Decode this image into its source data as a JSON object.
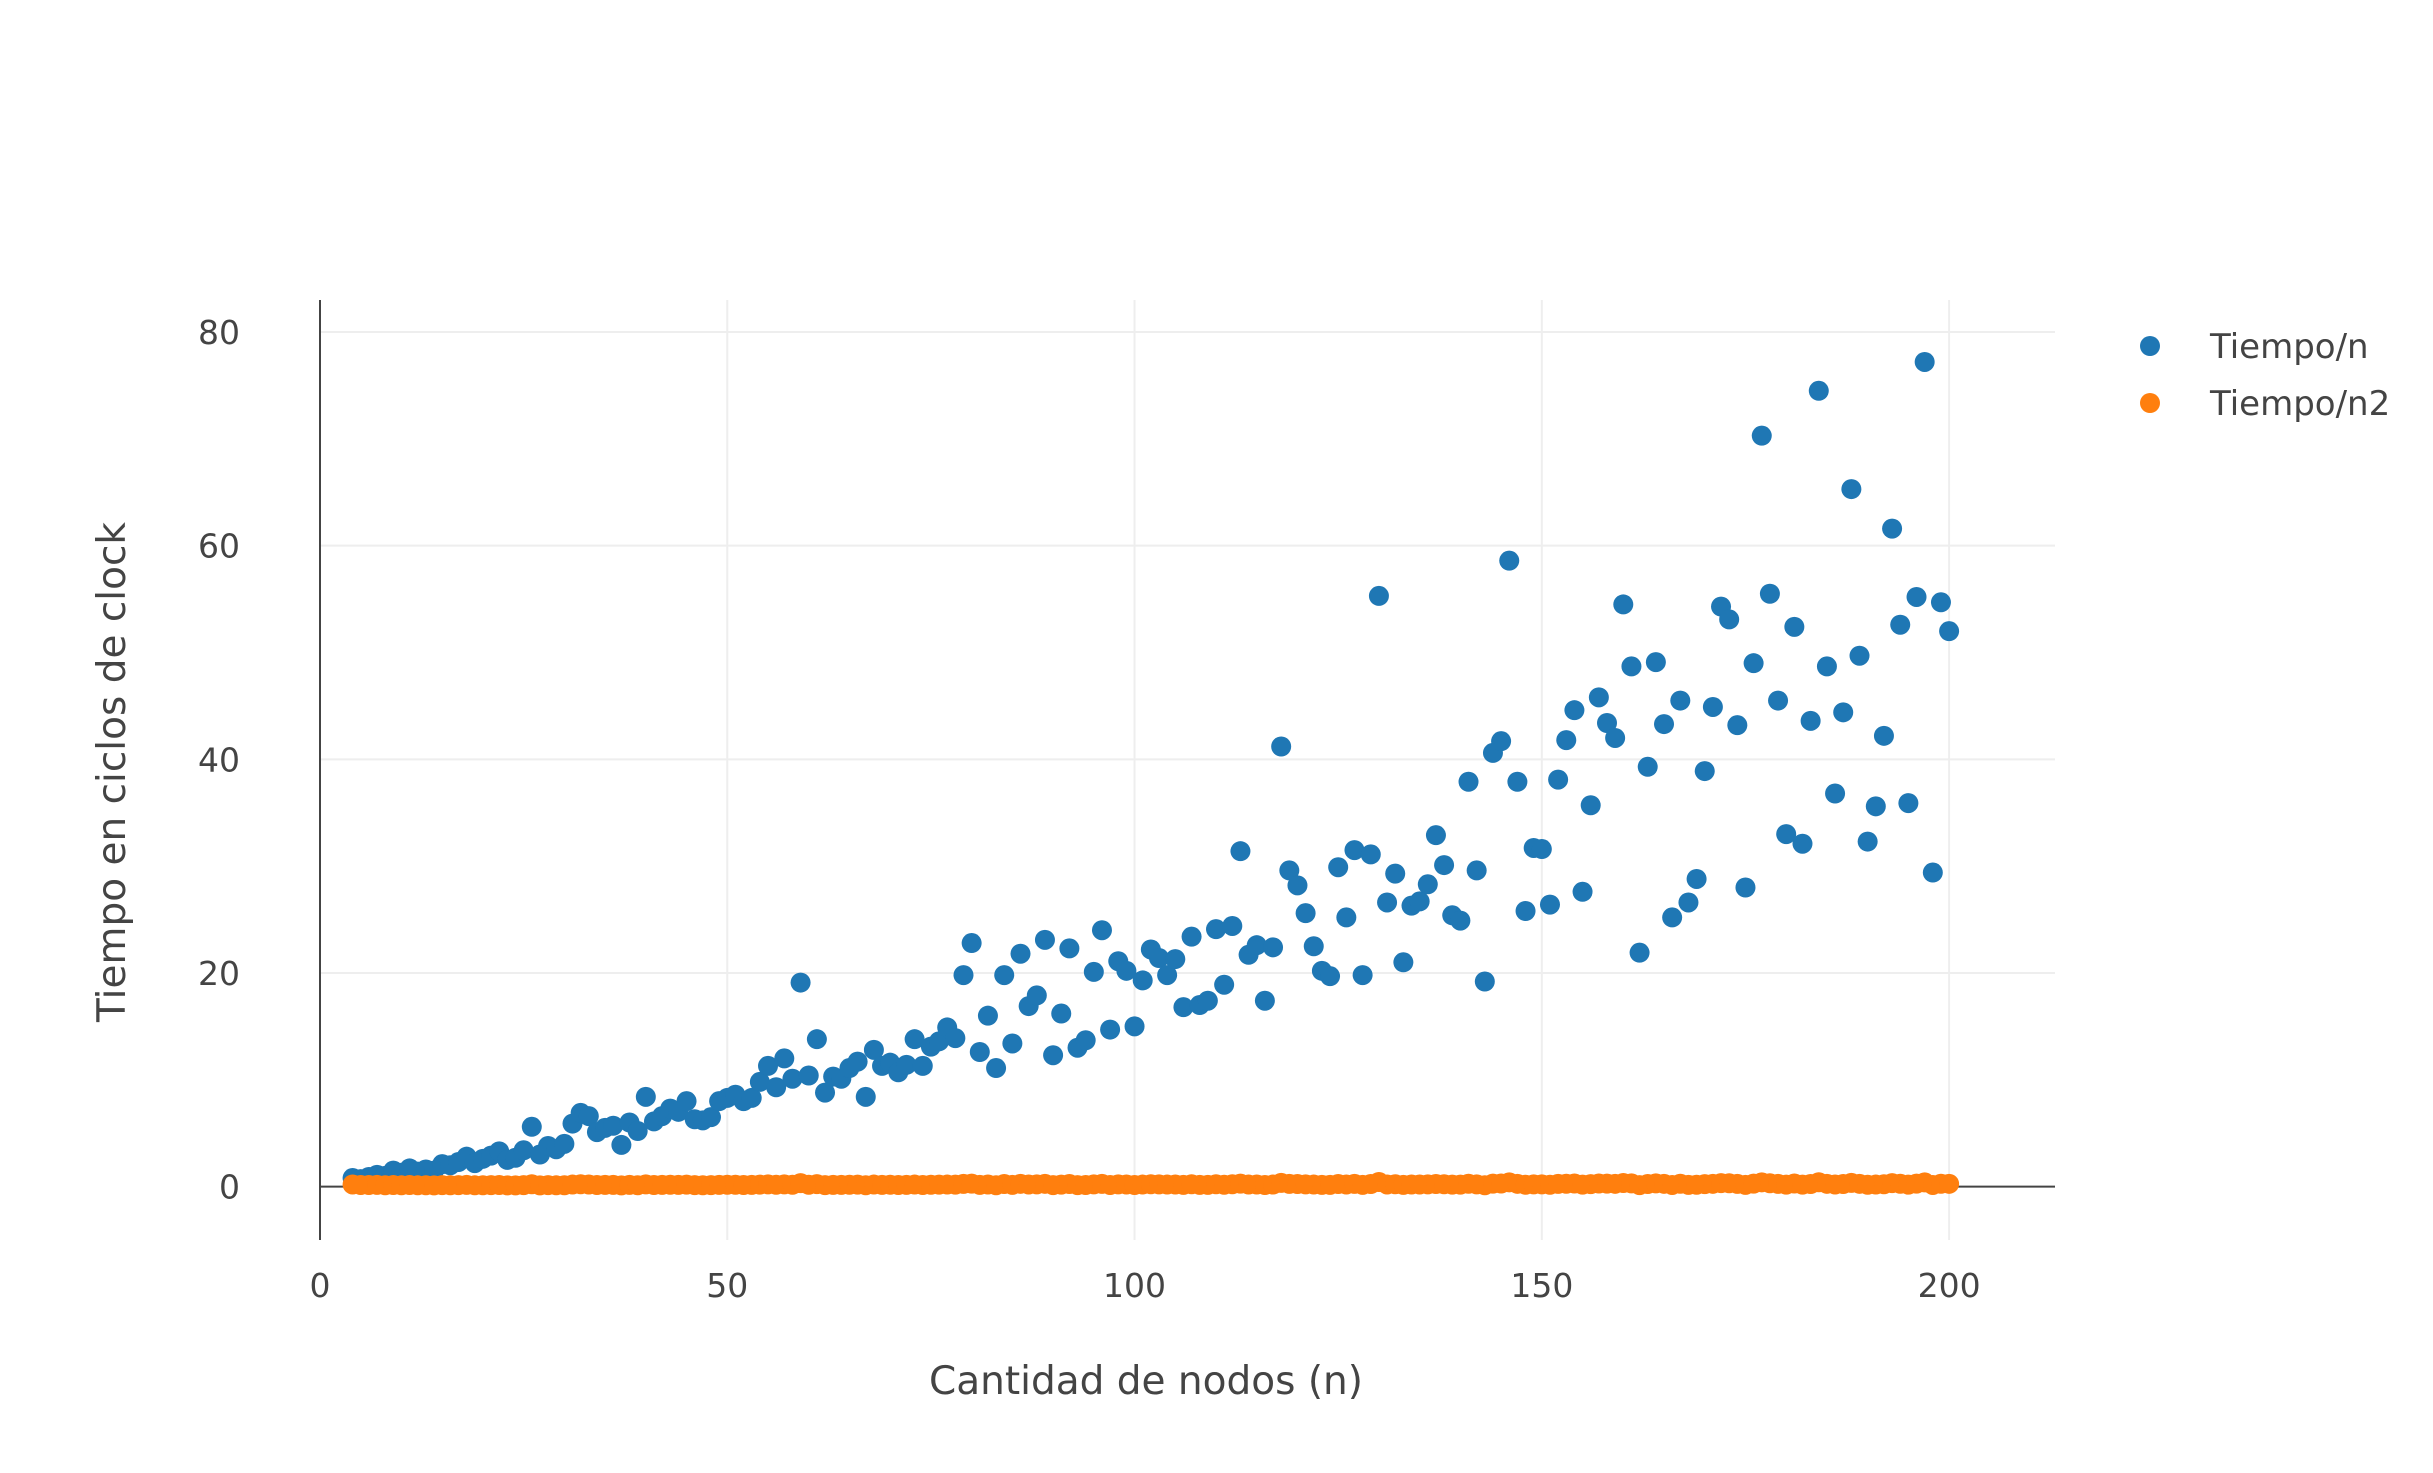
{
  "chart_data": {
    "type": "scatter",
    "title": "",
    "xlabel": "Cantidad de nodos (n)",
    "ylabel": "Tiempo en ciclos de clock",
    "xlim": [
      0,
      213
    ],
    "ylim": [
      -5,
      83
    ],
    "xticks": [
      0,
      50,
      100,
      150,
      200
    ],
    "yticks": [
      0,
      20,
      40,
      60,
      80
    ],
    "grid": true,
    "legend_position": "top-right",
    "series": [
      {
        "name": "Tiempo/n",
        "color": "#1f77b4",
        "points": [
          [
            4,
            0.8
          ],
          [
            5,
            0.7
          ],
          [
            6,
            0.9
          ],
          [
            7,
            1.1
          ],
          [
            8,
            1.0
          ],
          [
            9,
            1.5
          ],
          [
            10,
            1.3
          ],
          [
            11,
            1.7
          ],
          [
            12,
            1.4
          ],
          [
            13,
            1.6
          ],
          [
            14,
            1.5
          ],
          [
            15,
            2.1
          ],
          [
            16,
            2.0
          ],
          [
            17,
            2.3
          ],
          [
            18,
            2.8
          ],
          [
            19,
            2.2
          ],
          [
            20,
            2.6
          ],
          [
            21,
            2.9
          ],
          [
            22,
            3.3
          ],
          [
            23,
            2.5
          ],
          [
            24,
            2.7
          ],
          [
            25,
            3.4
          ],
          [
            26,
            5.6
          ],
          [
            27,
            3.0
          ],
          [
            28,
            3.8
          ],
          [
            29,
            3.5
          ],
          [
            30,
            4.0
          ],
          [
            31,
            5.9
          ],
          [
            32,
            6.9
          ],
          [
            33,
            6.6
          ],
          [
            34,
            5.1
          ],
          [
            35,
            5.5
          ],
          [
            36,
            5.7
          ],
          [
            37,
            3.9
          ],
          [
            38,
            6.0
          ],
          [
            39,
            5.2
          ],
          [
            40,
            8.4
          ],
          [
            41,
            6.1
          ],
          [
            42,
            6.6
          ],
          [
            43,
            7.3
          ],
          [
            44,
            7.0
          ],
          [
            45,
            8.0
          ],
          [
            46,
            6.3
          ],
          [
            47,
            6.2
          ],
          [
            48,
            6.5
          ],
          [
            49,
            8.0
          ],
          [
            50,
            8.3
          ],
          [
            51,
            8.6
          ],
          [
            52,
            8.0
          ],
          [
            53,
            8.3
          ],
          [
            54,
            9.8
          ],
          [
            55,
            11.3
          ],
          [
            56,
            9.3
          ],
          [
            57,
            12.0
          ],
          [
            58,
            10.1
          ],
          [
            59,
            19.1
          ],
          [
            60,
            10.4
          ],
          [
            61,
            13.8
          ],
          [
            62,
            8.8
          ],
          [
            63,
            10.3
          ],
          [
            64,
            10.1
          ],
          [
            65,
            11.1
          ],
          [
            66,
            11.7
          ],
          [
            67,
            8.4
          ],
          [
            68,
            12.8
          ],
          [
            69,
            11.3
          ],
          [
            70,
            11.6
          ],
          [
            71,
            10.7
          ],
          [
            72,
            11.4
          ],
          [
            73,
            13.8
          ],
          [
            74,
            11.3
          ],
          [
            75,
            13.1
          ],
          [
            76,
            13.6
          ],
          [
            77,
            14.9
          ],
          [
            78,
            13.9
          ],
          [
            79,
            19.8
          ],
          [
            80,
            22.8
          ],
          [
            81,
            12.6
          ],
          [
            82,
            16.0
          ],
          [
            83,
            11.1
          ],
          [
            84,
            19.8
          ],
          [
            85,
            13.4
          ],
          [
            86,
            21.8
          ],
          [
            87,
            16.9
          ],
          [
            88,
            17.9
          ],
          [
            89,
            23.1
          ],
          [
            90,
            12.3
          ],
          [
            91,
            16.2
          ],
          [
            92,
            22.3
          ],
          [
            93,
            13.0
          ],
          [
            94,
            13.7
          ],
          [
            95,
            20.1
          ],
          [
            96,
            24.0
          ],
          [
            97,
            14.7
          ],
          [
            98,
            21.1
          ],
          [
            99,
            20.2
          ],
          [
            100,
            15.0
          ],
          [
            101,
            19.3
          ],
          [
            102,
            22.2
          ],
          [
            103,
            21.4
          ],
          [
            104,
            19.8
          ],
          [
            105,
            21.3
          ],
          [
            106,
            16.8
          ],
          [
            107,
            23.4
          ],
          [
            108,
            17.0
          ],
          [
            109,
            17.4
          ],
          [
            110,
            24.1
          ],
          [
            111,
            18.9
          ],
          [
            112,
            24.4
          ],
          [
            113,
            31.4
          ],
          [
            114,
            21.7
          ],
          [
            115,
            22.6
          ],
          [
            116,
            17.4
          ],
          [
            117,
            22.4
          ],
          [
            118,
            41.2
          ],
          [
            119,
            29.6
          ],
          [
            120,
            28.2
          ],
          [
            121,
            25.6
          ],
          [
            122,
            22.5
          ],
          [
            123,
            20.2
          ],
          [
            124,
            19.7
          ],
          [
            125,
            29.9
          ],
          [
            126,
            25.2
          ],
          [
            127,
            31.5
          ],
          [
            128,
            19.8
          ],
          [
            129,
            31.1
          ],
          [
            130,
            55.3
          ],
          [
            131,
            26.6
          ],
          [
            132,
            29.3
          ],
          [
            133,
            21.0
          ],
          [
            134,
            26.3
          ],
          [
            135,
            26.7
          ],
          [
            136,
            28.3
          ],
          [
            137,
            32.9
          ],
          [
            138,
            30.1
          ],
          [
            139,
            25.4
          ],
          [
            140,
            24.9
          ],
          [
            141,
            37.9
          ],
          [
            142,
            29.6
          ],
          [
            143,
            19.2
          ],
          [
            144,
            40.6
          ],
          [
            145,
            41.7
          ],
          [
            146,
            58.6
          ],
          [
            147,
            37.9
          ],
          [
            148,
            25.8
          ],
          [
            149,
            31.7
          ],
          [
            150,
            31.6
          ],
          [
            151,
            26.4
          ],
          [
            152,
            38.1
          ],
          [
            153,
            41.8
          ],
          [
            154,
            44.6
          ],
          [
            155,
            27.6
          ],
          [
            156,
            35.7
          ],
          [
            157,
            45.8
          ],
          [
            158,
            43.4
          ],
          [
            159,
            42.0
          ],
          [
            160,
            54.5
          ],
          [
            161,
            48.7
          ],
          [
            162,
            21.9
          ],
          [
            163,
            39.3
          ],
          [
            164,
            49.1
          ],
          [
            165,
            43.3
          ],
          [
            166,
            25.2
          ],
          [
            167,
            45.5
          ],
          [
            168,
            26.6
          ],
          [
            169,
            28.8
          ],
          [
            170,
            38.9
          ],
          [
            171,
            44.9
          ],
          [
            172,
            54.3
          ],
          [
            173,
            53.1
          ],
          [
            174,
            43.2
          ],
          [
            175,
            28.0
          ],
          [
            176,
            49.0
          ],
          [
            177,
            70.3
          ],
          [
            178,
            55.5
          ],
          [
            179,
            45.5
          ],
          [
            180,
            33.0
          ],
          [
            181,
            52.4
          ],
          [
            182,
            32.1
          ],
          [
            183,
            43.6
          ],
          [
            184,
            74.5
          ],
          [
            185,
            48.7
          ],
          [
            186,
            36.8
          ],
          [
            187,
            44.4
          ],
          [
            188,
            65.3
          ],
          [
            189,
            49.7
          ],
          [
            190,
            32.3
          ],
          [
            191,
            35.6
          ],
          [
            192,
            42.2
          ],
          [
            193,
            61.6
          ],
          [
            194,
            52.6
          ],
          [
            195,
            35.9
          ],
          [
            196,
            55.2
          ],
          [
            197,
            77.2
          ],
          [
            198,
            29.4
          ],
          [
            199,
            54.7
          ],
          [
            200,
            52.0
          ]
        ]
      },
      {
        "name": "Tiempo/n2",
        "color": "#ff7f0e",
        "x_start": 4,
        "x_end": 200,
        "y_values": [
          0.2,
          0.15,
          0.15,
          0.16,
          0.13,
          0.15,
          0.12,
          0.15,
          0.12,
          0.13,
          0.11,
          0.14,
          0.13,
          0.14,
          0.16,
          0.12,
          0.13,
          0.14,
          0.15,
          0.11,
          0.11,
          0.14,
          0.22,
          0.11,
          0.14,
          0.12,
          0.13,
          0.19,
          0.22,
          0.2,
          0.15,
          0.16,
          0.16,
          0.11,
          0.16,
          0.13,
          0.21,
          0.15,
          0.16,
          0.17,
          0.16,
          0.18,
          0.14,
          0.13,
          0.14,
          0.16,
          0.17,
          0.17,
          0.15,
          0.16,
          0.18,
          0.21,
          0.17,
          0.21,
          0.17,
          0.32,
          0.17,
          0.23,
          0.14,
          0.16,
          0.16,
          0.17,
          0.18,
          0.13,
          0.19,
          0.16,
          0.17,
          0.15,
          0.16,
          0.19,
          0.15,
          0.17,
          0.18,
          0.19,
          0.18,
          0.25,
          0.28,
          0.16,
          0.2,
          0.13,
          0.24,
          0.16,
          0.26,
          0.2,
          0.21,
          0.26,
          0.14,
          0.18,
          0.24,
          0.14,
          0.15,
          0.21,
          0.25,
          0.15,
          0.21,
          0.2,
          0.15,
          0.19,
          0.22,
          0.21,
          0.19,
          0.2,
          0.16,
          0.22,
          0.16,
          0.16,
          0.22,
          0.17,
          0.22,
          0.28,
          0.19,
          0.2,
          0.15,
          0.19,
          0.35,
          0.25,
          0.24,
          0.21,
          0.19,
          0.16,
          0.16,
          0.24,
          0.2,
          0.25,
          0.16,
          0.24,
          0.43,
          0.2,
          0.22,
          0.16,
          0.2,
          0.2,
          0.21,
          0.24,
          0.22,
          0.18,
          0.18,
          0.27,
          0.21,
          0.13,
          0.28,
          0.29,
          0.4,
          0.26,
          0.17,
          0.21,
          0.21,
          0.17,
          0.25,
          0.27,
          0.29,
          0.18,
          0.23,
          0.29,
          0.28,
          0.26,
          0.34,
          0.3,
          0.14,
          0.24,
          0.3,
          0.26,
          0.15,
          0.27,
          0.16,
          0.17,
          0.23,
          0.26,
          0.32,
          0.31,
          0.25,
          0.16,
          0.28,
          0.4,
          0.31,
          0.25,
          0.18,
          0.29,
          0.18,
          0.24,
          0.41,
          0.26,
          0.2,
          0.24,
          0.35,
          0.26,
          0.17,
          0.19,
          0.22,
          0.32,
          0.27,
          0.18,
          0.28,
          0.39,
          0.15,
          0.27,
          0.26
        ]
      }
    ]
  }
}
